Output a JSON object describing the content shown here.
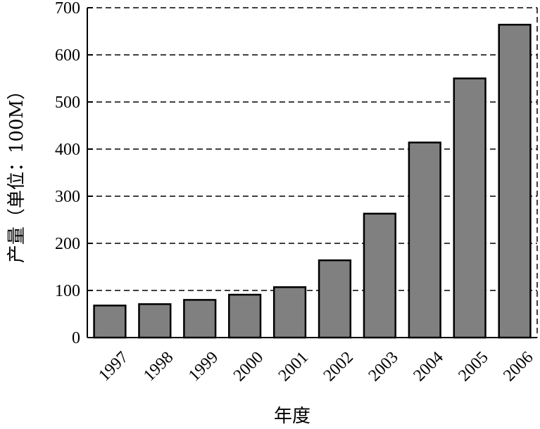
{
  "chart_data": {
    "type": "bar",
    "categories": [
      "1997",
      "1998",
      "1999",
      "2000",
      "2001",
      "2002",
      "2003",
      "2004",
      "2005",
      "2006"
    ],
    "values": [
      68,
      71,
      80,
      91,
      107,
      164,
      263,
      414,
      550,
      664
    ],
    "xlabel": "年度",
    "ylabel": "产量（单位：100M）",
    "ylim": [
      0,
      700
    ],
    "yticks": [
      "0",
      "100",
      "200",
      "300",
      "400",
      "500",
      "600",
      "700"
    ],
    "grid": "horizontal dashed",
    "bar_color": "#808080"
  }
}
